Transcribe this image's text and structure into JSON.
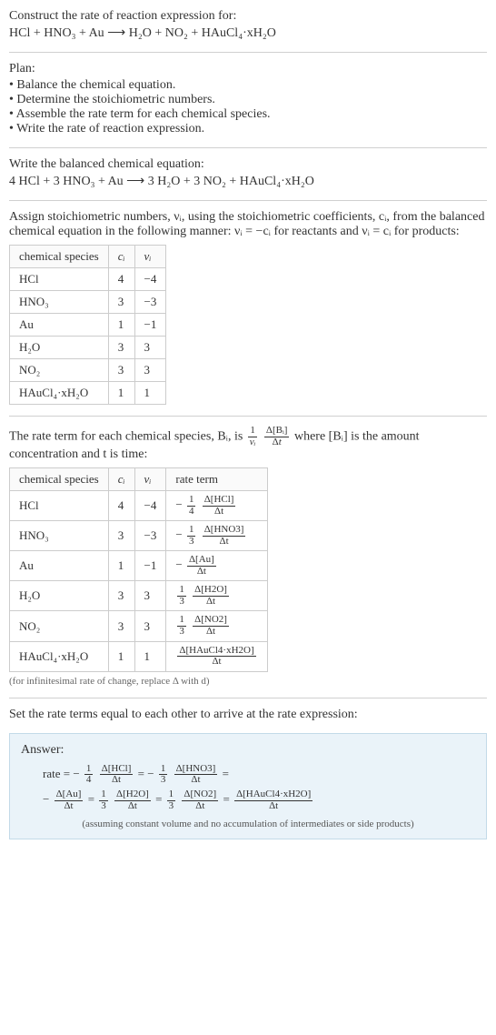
{
  "intro": {
    "line1": "Construct the rate of reaction expression for:",
    "equation": "HCl + HNO₃ + Au ⟶ H₂O + NO₂ + HAuCl₄·xH₂O"
  },
  "plan": {
    "heading": "Plan:",
    "items": [
      "Balance the chemical equation.",
      "Determine the stoichiometric numbers.",
      "Assemble the rate term for each chemical species.",
      "Write the rate of reaction expression."
    ]
  },
  "balanced": {
    "heading": "Write the balanced chemical equation:",
    "equation": "4 HCl + 3 HNO₃ + Au ⟶ 3 H₂O + 3 NO₂ + HAuCl₄·xH₂O"
  },
  "stoich": {
    "text1": "Assign stoichiometric numbers, νᵢ, using the stoichiometric coefficients, cᵢ, from the balanced chemical equation in the following manner: νᵢ = −cᵢ for reactants and νᵢ = cᵢ for products:",
    "headers": [
      "chemical species",
      "cᵢ",
      "νᵢ"
    ],
    "rows": [
      {
        "species": "HCl",
        "c": "4",
        "v": "−4"
      },
      {
        "species": "HNO₃",
        "c": "3",
        "v": "−3"
      },
      {
        "species": "Au",
        "c": "1",
        "v": "−1"
      },
      {
        "species": "H₂O",
        "c": "3",
        "v": "3"
      },
      {
        "species": "NO₂",
        "c": "3",
        "v": "3"
      },
      {
        "species": "HAuCl₄·xH₂O",
        "c": "1",
        "v": "1"
      }
    ]
  },
  "rateterm": {
    "text1": "The rate term for each chemical species, Bᵢ, is",
    "text2": "where [Bᵢ] is the amount concentration and t is time:",
    "headers": [
      "chemical species",
      "cᵢ",
      "νᵢ",
      "rate term"
    ],
    "rows": [
      {
        "species": "HCl",
        "c": "4",
        "v": "−4",
        "sign": "−",
        "coef_num": "1",
        "coef_den": "4",
        "delta_num": "Δ[HCl]",
        "delta_den": "Δt"
      },
      {
        "species": "HNO₃",
        "c": "3",
        "v": "−3",
        "sign": "−",
        "coef_num": "1",
        "coef_den": "3",
        "delta_num": "Δ[HNO3]",
        "delta_den": "Δt"
      },
      {
        "species": "Au",
        "c": "1",
        "v": "−1",
        "sign": "−",
        "coef_num": "",
        "coef_den": "",
        "delta_num": "Δ[Au]",
        "delta_den": "Δt"
      },
      {
        "species": "H₂O",
        "c": "3",
        "v": "3",
        "sign": "",
        "coef_num": "1",
        "coef_den": "3",
        "delta_num": "Δ[H2O]",
        "delta_den": "Δt"
      },
      {
        "species": "NO₂",
        "c": "3",
        "v": "3",
        "sign": "",
        "coef_num": "1",
        "coef_den": "3",
        "delta_num": "Δ[NO2]",
        "delta_den": "Δt"
      },
      {
        "species": "HAuCl₄·xH₂O",
        "c": "1",
        "v": "1",
        "sign": "",
        "coef_num": "",
        "coef_den": "",
        "delta_num": "Δ[HAuCl4·xH2O]",
        "delta_den": "Δt"
      }
    ],
    "note": "(for infinitesimal rate of change, replace Δ with d)"
  },
  "setequal": {
    "text": "Set the rate terms equal to each other to arrive at the rate expression:"
  },
  "answer": {
    "heading": "Answer:",
    "prefix": "rate =",
    "terms": [
      {
        "sign": "−",
        "coef_num": "1",
        "coef_den": "4",
        "delta_num": "Δ[HCl]",
        "delta_den": "Δt"
      },
      {
        "sign": "−",
        "coef_num": "1",
        "coef_den": "3",
        "delta_num": "Δ[HNO3]",
        "delta_den": "Δt"
      },
      {
        "sign": "−",
        "coef_num": "",
        "coef_den": "",
        "delta_num": "Δ[Au]",
        "delta_den": "Δt"
      },
      {
        "sign": "",
        "coef_num": "1",
        "coef_den": "3",
        "delta_num": "Δ[H2O]",
        "delta_den": "Δt"
      },
      {
        "sign": "",
        "coef_num": "1",
        "coef_den": "3",
        "delta_num": "Δ[NO2]",
        "delta_den": "Δt"
      },
      {
        "sign": "",
        "coef_num": "",
        "coef_den": "",
        "delta_num": "Δ[HAuCl4·xH2O]",
        "delta_den": "Δt"
      }
    ],
    "subnote": "(assuming constant volume and no accumulation of intermediates or side products)"
  },
  "colors": {
    "hr": "#d0d0d0",
    "table_border": "#cccccc",
    "answer_bg": "#eaf3f9",
    "answer_border": "#c3dae8",
    "text": "#333333"
  }
}
